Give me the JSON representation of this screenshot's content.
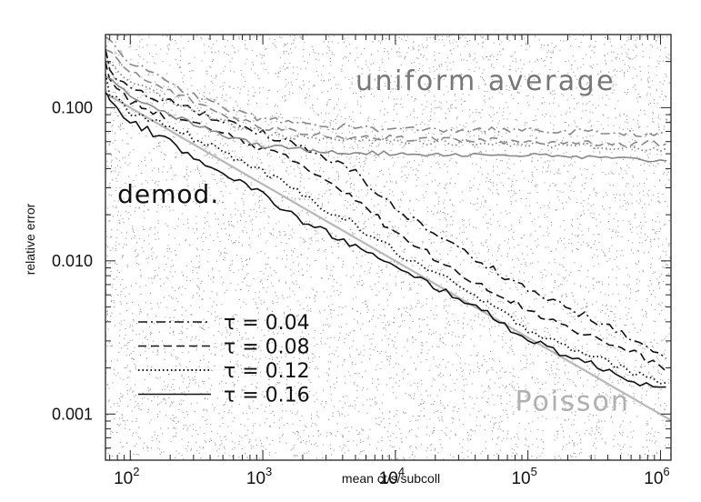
{
  "chart_data": {
    "type": "line",
    "xlabel": "mean ct/s/subcoll",
    "ylabel": "relative error",
    "xscale": "log",
    "yscale": "log",
    "xlim": [
      65,
      1200000
    ],
    "ylim": [
      0.0005,
      0.3
    ],
    "xticks": [
      {
        "value": 100,
        "base": "10",
        "exp": "2"
      },
      {
        "value": 1000,
        "base": "10",
        "exp": "3"
      },
      {
        "value": 10000,
        "base": "10",
        "exp": "4"
      },
      {
        "value": 100000,
        "base": "10",
        "exp": "5"
      },
      {
        "value": 1000000,
        "base": "10",
        "exp": "6"
      }
    ],
    "yticks": [
      {
        "value": 0.001,
        "label": "0.001"
      },
      {
        "value": 0.01,
        "label": "0.010"
      },
      {
        "value": 0.1,
        "label": "0.100"
      }
    ],
    "annotations": [
      {
        "text": "uniform average",
        "x": 5000,
        "y": 0.13,
        "color": "#777777"
      },
      {
        "text": "demod.",
        "x": 80,
        "y": 0.024,
        "color": "#111111"
      },
      {
        "text": "Poisson",
        "x": 80000,
        "y": 0.00105,
        "color": "#b0b0b0"
      }
    ],
    "legend": {
      "placement": "bottom-left",
      "entries": [
        {
          "label": "τ = 0.04",
          "style": "dashdot"
        },
        {
          "label": "τ = 0.08",
          "style": "dashed"
        },
        {
          "label": "τ = 0.12",
          "style": "dotted"
        },
        {
          "label": "τ = 0.16",
          "style": "solid"
        }
      ]
    },
    "series": [
      {
        "style": "solid",
        "color": "#b8b8b8",
        "role": "poisson",
        "x": [
          65,
          1200000
        ],
        "y": [
          0.124,
          0.00091
        ]
      },
      {
        "style": "dashdot",
        "color": "#111111",
        "role": "demod",
        "noise": 0.025,
        "x": [
          65,
          70,
          100,
          200,
          500,
          1000,
          2000,
          5000,
          10000,
          30000,
          100000,
          300000,
          700000,
          1100000
        ],
        "y": [
          0.24,
          0.17,
          0.128,
          0.109,
          0.083,
          0.068,
          0.054,
          0.038,
          0.022,
          0.012,
          0.0065,
          0.0042,
          0.0029,
          0.0023
        ]
      },
      {
        "style": "dashed",
        "color": "#111111",
        "role": "demod",
        "noise": 0.025,
        "x": [
          65,
          70,
          100,
          200,
          500,
          1000,
          2000,
          5000,
          10000,
          30000,
          100000,
          300000,
          700000,
          1100000
        ],
        "y": [
          0.2,
          0.15,
          0.108,
          0.087,
          0.068,
          0.054,
          0.042,
          0.026,
          0.015,
          0.0085,
          0.0048,
          0.0032,
          0.0024,
          0.0019
        ]
      },
      {
        "style": "dotted",
        "color": "#111111",
        "role": "demod",
        "noise": 0.025,
        "x": [
          65,
          70,
          100,
          200,
          500,
          1000,
          2000,
          5000,
          10000,
          30000,
          100000,
          300000,
          700000,
          1100000
        ],
        "y": [
          0.165,
          0.125,
          0.093,
          0.074,
          0.052,
          0.038,
          0.027,
          0.017,
          0.0115,
          0.0068,
          0.0036,
          0.0024,
          0.0018,
          0.0016
        ]
      },
      {
        "style": "solid",
        "color": "#111111",
        "role": "demod",
        "noise": 0.025,
        "x": [
          65,
          70,
          100,
          200,
          500,
          1000,
          2000,
          5000,
          10000,
          30000,
          100000,
          300000,
          700000,
          1100000
        ],
        "y": [
          0.125,
          0.11,
          0.082,
          0.059,
          0.038,
          0.027,
          0.018,
          0.0125,
          0.0089,
          0.0058,
          0.0031,
          0.0021,
          0.0016,
          0.0015
        ]
      },
      {
        "style": "dashdot",
        "color": "#888888",
        "role": "uniform",
        "noise": 0.02,
        "x": [
          65,
          100,
          200,
          500,
          1000,
          3000,
          10000,
          100000,
          1100000
        ],
        "y": [
          0.29,
          0.2,
          0.142,
          0.1,
          0.084,
          0.076,
          0.072,
          0.071,
          0.067
        ]
      },
      {
        "style": "dashed",
        "color": "#888888",
        "role": "uniform",
        "noise": 0.02,
        "x": [
          65,
          100,
          200,
          500,
          1000,
          3000,
          10000,
          100000,
          1100000
        ],
        "y": [
          0.24,
          0.17,
          0.128,
          0.09,
          0.074,
          0.066,
          0.063,
          0.06,
          0.058
        ]
      },
      {
        "style": "dotted",
        "color": "#888888",
        "role": "uniform",
        "noise": 0.02,
        "x": [
          65,
          100,
          200,
          500,
          1000,
          3000,
          10000,
          100000,
          1100000
        ],
        "y": [
          0.2,
          0.15,
          0.112,
          0.082,
          0.068,
          0.062,
          0.06,
          0.058,
          0.054
        ]
      },
      {
        "style": "solid",
        "color": "#888888",
        "role": "uniform",
        "noise": 0.015,
        "x": [
          65,
          100,
          200,
          500,
          1000,
          3000,
          10000,
          100000,
          1100000
        ],
        "y": [
          0.16,
          0.12,
          0.09,
          0.066,
          0.056,
          0.052,
          0.05,
          0.049,
          0.045
        ]
      }
    ]
  }
}
